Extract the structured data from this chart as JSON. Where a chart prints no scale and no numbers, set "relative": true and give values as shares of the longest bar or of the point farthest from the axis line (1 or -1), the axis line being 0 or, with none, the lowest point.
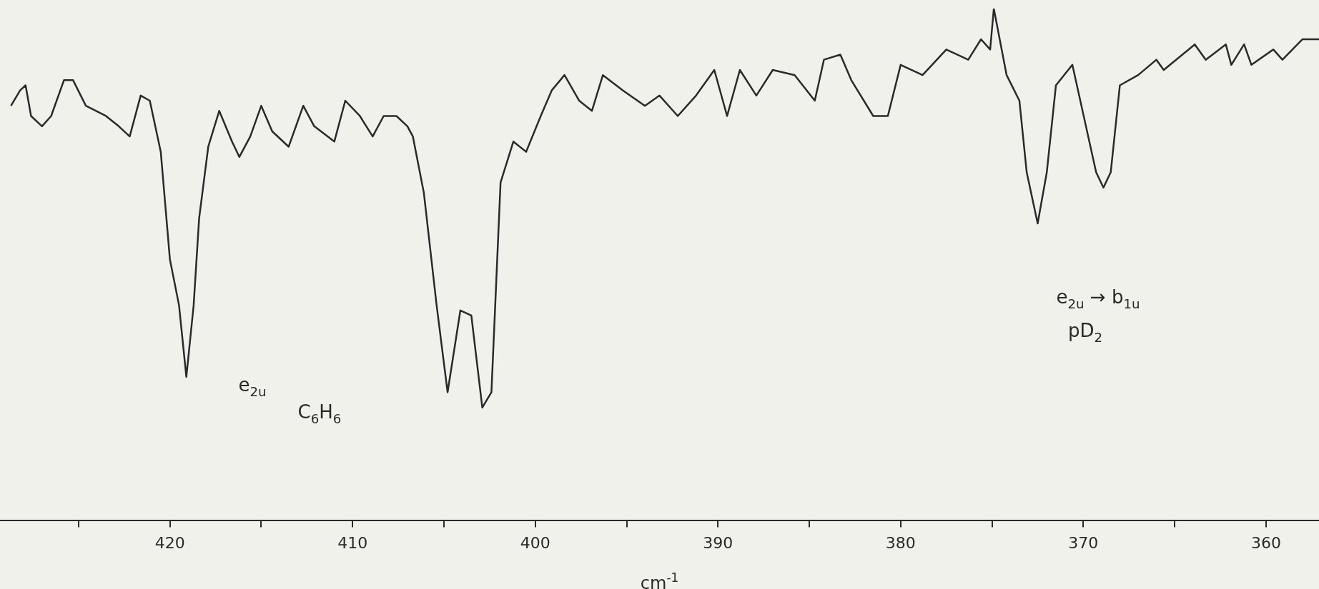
{
  "chart_data": {
    "type": "line",
    "relative": true,
    "xlabel": "cm$^{-1}$",
    "color": "#2a2a2a",
    "xlim": [
      429.3,
      357.1
    ],
    "xticks": [
      {
        "value": 425,
        "label": null
      },
      420,
      {
        "value": 415,
        "label": null
      },
      410,
      {
        "value": 405,
        "label": null
      },
      400,
      {
        "value": 395,
        "label": null
      },
      390,
      {
        "value": 385,
        "label": null
      },
      380,
      {
        "value": 375,
        "label": null
      },
      370,
      {
        "value": 365,
        "label": null
      },
      360
    ],
    "x": [
      428.7,
      428.2,
      427.9,
      427.6,
      427.0,
      426.5,
      425.8,
      425.3,
      424.6,
      423.5,
      422.8,
      422.2,
      421.6,
      421.1,
      420.5,
      420.0,
      419.5,
      419.1,
      418.7,
      418.4,
      417.9,
      417.3,
      416.6,
      416.2,
      415.6,
      415.0,
      414.4,
      413.5,
      412.7,
      412.1,
      411.0,
      410.4,
      409.6,
      408.9,
      408.3,
      407.6,
      407.0,
      406.7,
      406.1,
      405.4,
      404.8,
      404.1,
      403.5,
      402.9,
      402.4,
      401.9,
      401.2,
      400.5,
      399.7,
      399.1,
      398.4,
      397.6,
      396.9,
      396.3,
      395.2,
      394.0,
      393.2,
      392.2,
      391.2,
      390.2,
      389.5,
      388.8,
      387.9,
      387.0,
      385.8,
      384.7,
      384.2,
      383.3,
      382.7,
      381.5,
      380.7,
      380.0,
      378.8,
      377.5,
      376.3,
      375.6,
      375.1,
      374.9,
      374.2,
      373.5,
      373.1,
      372.5,
      372.0,
      371.5,
      370.6,
      369.3,
      368.9,
      368.5,
      368.0,
      367.0,
      366.0,
      365.6,
      363.9,
      363.3,
      362.2,
      361.9,
      361.2,
      360.8,
      359.6,
      359.1,
      358.0,
      357.1
    ],
    "values": [
      0.81,
      0.84,
      0.85,
      0.79,
      0.77,
      0.79,
      0.86,
      0.86,
      0.81,
      0.79,
      0.77,
      0.75,
      0.83,
      0.82,
      0.72,
      0.51,
      0.42,
      0.28,
      0.42,
      0.59,
      0.73,
      0.8,
      0.74,
      0.71,
      0.75,
      0.81,
      0.76,
      0.73,
      0.81,
      0.77,
      0.74,
      0.82,
      0.79,
      0.75,
      0.79,
      0.79,
      0.77,
      0.75,
      0.64,
      0.42,
      0.25,
      0.41,
      0.4,
      0.22,
      0.25,
      0.66,
      0.74,
      0.72,
      0.79,
      0.84,
      0.87,
      0.82,
      0.8,
      0.87,
      0.84,
      0.81,
      0.83,
      0.79,
      0.83,
      0.88,
      0.79,
      0.88,
      0.83,
      0.88,
      0.87,
      0.82,
      0.9,
      0.91,
      0.86,
      0.79,
      0.79,
      0.89,
      0.87,
      0.92,
      0.9,
      0.94,
      0.92,
      1.0,
      0.87,
      0.82,
      0.68,
      0.58,
      0.68,
      0.85,
      0.89,
      0.68,
      0.65,
      0.68,
      0.85,
      0.87,
      0.9,
      0.88,
      0.93,
      0.9,
      0.93,
      0.89,
      0.93,
      0.89,
      0.92,
      0.9,
      0.94,
      0.94
    ],
    "annotations": [
      "e$_{2u}$",
      "C$_{6}$H$_{6}$",
      "e$_{2u}$ → b$_{1u}$",
      "pD$_{2}$"
    ]
  }
}
